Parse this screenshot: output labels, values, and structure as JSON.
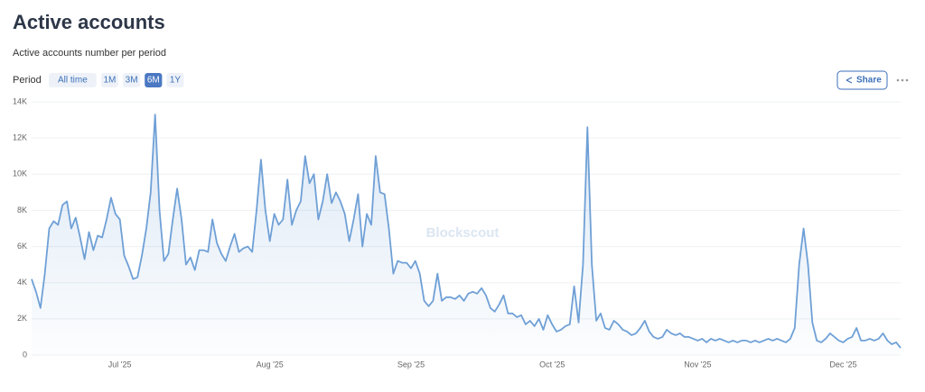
{
  "header": {
    "title": "Active accounts",
    "subtitle": "Active accounts number per period"
  },
  "controls": {
    "period_label": "Period",
    "periods": [
      "All time",
      "1M",
      "3M",
      "6M",
      "1Y"
    ],
    "active_period": "6M",
    "share": "Share"
  },
  "watermark": "Blockscout",
  "chart_data": {
    "type": "line",
    "color": "#6fa0d6",
    "grid": true,
    "categories": [
      null,
      null,
      null,
      null,
      null,
      null,
      null,
      null,
      null,
      null,
      null,
      null,
      null,
      null,
      null,
      null,
      null,
      null,
      null,
      null,
      "Jul '25",
      null,
      null,
      null,
      null,
      null,
      null,
      null,
      null,
      null,
      null,
      null,
      null,
      null,
      null,
      null,
      null,
      null,
      null,
      null,
      null,
      null,
      null,
      null,
      null,
      null,
      null,
      null,
      null,
      null,
      null,
      null,
      null,
      null,
      "Aug '25",
      null,
      null,
      null,
      null,
      null,
      null,
      null,
      null,
      null,
      null,
      null,
      null,
      null,
      null,
      null,
      null,
      null,
      null,
      null,
      null,
      null,
      null,
      null,
      null,
      null,
      null,
      null,
      null,
      null,
      null,
      null,
      "Sep '25",
      null,
      null,
      null,
      null,
      null,
      null,
      null,
      null,
      null,
      null,
      null,
      null,
      null,
      null,
      null,
      null,
      null,
      null,
      null,
      null,
      null,
      null,
      null,
      null,
      null,
      null,
      null,
      null,
      null,
      null,
      null,
      "Oct '25",
      null,
      null,
      null,
      null,
      null,
      null,
      null,
      null,
      null,
      null,
      null,
      null,
      null,
      null,
      null,
      null,
      null,
      null,
      null,
      null,
      null,
      null,
      null,
      null,
      null,
      null,
      null,
      null,
      null,
      null,
      null,
      null,
      "Nov '25",
      null,
      null,
      null,
      null,
      null,
      null,
      null,
      null,
      null,
      null,
      null,
      null,
      null,
      null,
      null,
      null,
      null,
      null,
      null,
      null,
      null,
      null,
      null,
      null,
      null,
      null,
      null,
      null,
      null,
      null,
      null,
      null,
      "Dec '25",
      null,
      null,
      null,
      null,
      null,
      null,
      null,
      null,
      null,
      null,
      null,
      null,
      null
    ],
    "values": [
      4200,
      3500,
      2600,
      4500,
      7000,
      7400,
      7200,
      8300,
      8500,
      7000,
      7600,
      6500,
      5300,
      6800,
      5800,
      6600,
      6500,
      7500,
      8700,
      7800,
      7500,
      5500,
      4900,
      4200,
      4300,
      5500,
      7000,
      9000,
      13300,
      8000,
      5200,
      5600,
      7500,
      9200,
      7500,
      5000,
      5400,
      4700,
      5800,
      5800,
      5700,
      7500,
      6200,
      5600,
      5200,
      6000,
      6700,
      5700,
      5900,
      6000,
      5700,
      8000,
      10800,
      8000,
      6300,
      7800,
      7200,
      7500,
      9700,
      7200,
      8000,
      8500,
      11000,
      9500,
      10000,
      7500,
      8500,
      10000,
      8400,
      9000,
      8500,
      7800,
      6300,
      7500,
      8900,
      6000,
      7800,
      7200,
      11000,
      9000,
      8900,
      7000,
      4500,
      5200,
      5100,
      5100,
      4800,
      5200,
      4500,
      3000,
      2700,
      3000,
      4500,
      3000,
      3200,
      3200,
      3100,
      3300,
      3000,
      3400,
      3500,
      3400,
      3700,
      3300,
      2600,
      2400,
      2800,
      3300,
      2300,
      2300,
      2100,
      2200,
      1700,
      1900,
      1600,
      2000,
      1400,
      2200,
      1700,
      1300,
      1400,
      1600,
      1700,
      3800,
      1800,
      5000,
      12600,
      5000,
      1900,
      2300,
      1500,
      1400,
      1900,
      1700,
      1400,
      1300,
      1100,
      1200,
      1500,
      1900,
      1300,
      1000,
      900,
      1000,
      1400,
      1200,
      1100,
      1200,
      1000,
      1000,
      900,
      800,
      900,
      700,
      900,
      800,
      900,
      800,
      700,
      800,
      700,
      800,
      800,
      700,
      800,
      700,
      800,
      900,
      800,
      900,
      800,
      700,
      900,
      1500,
      5000,
      7000,
      5000,
      1800,
      800,
      700,
      900,
      1200,
      1000,
      800,
      700,
      900,
      1000,
      1500,
      800,
      800,
      900,
      800,
      900,
      1200,
      800,
      600,
      700,
      400
    ],
    "ylim": [
      0,
      14000
    ],
    "yticks": [
      0,
      {
        "value": 2000,
        "label": "2K"
      },
      {
        "value": 4000,
        "label": "4K"
      },
      {
        "value": 6000,
        "label": "6K"
      },
      {
        "value": 8000,
        "label": "8K"
      },
      {
        "value": 10000,
        "label": "10K"
      },
      {
        "value": 12000,
        "label": "12K"
      },
      {
        "value": 14000,
        "label": "14K"
      }
    ]
  }
}
